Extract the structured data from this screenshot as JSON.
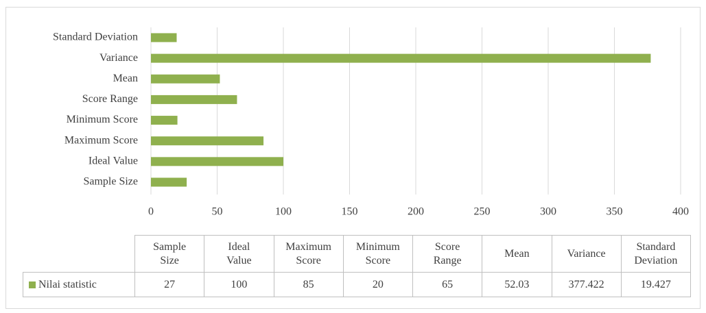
{
  "chart_data": {
    "type": "bar",
    "orientation": "horizontal",
    "categories": [
      "Sample Size",
      "Ideal Value",
      "Maximum Score",
      "Minimum Score",
      "Score Range",
      "Mean",
      "Variance",
      "Standard Deviation"
    ],
    "series": [
      {
        "name": "Nilai statistic",
        "color": "#8fb04e",
        "values": [
          27,
          100,
          85,
          20,
          65,
          52.03,
          377.422,
          19.427
        ]
      }
    ],
    "xlim": [
      0,
      400
    ],
    "xticks": [
      0,
      50,
      100,
      150,
      200,
      250,
      300,
      350,
      400
    ],
    "grid": true,
    "data_table": true
  }
}
